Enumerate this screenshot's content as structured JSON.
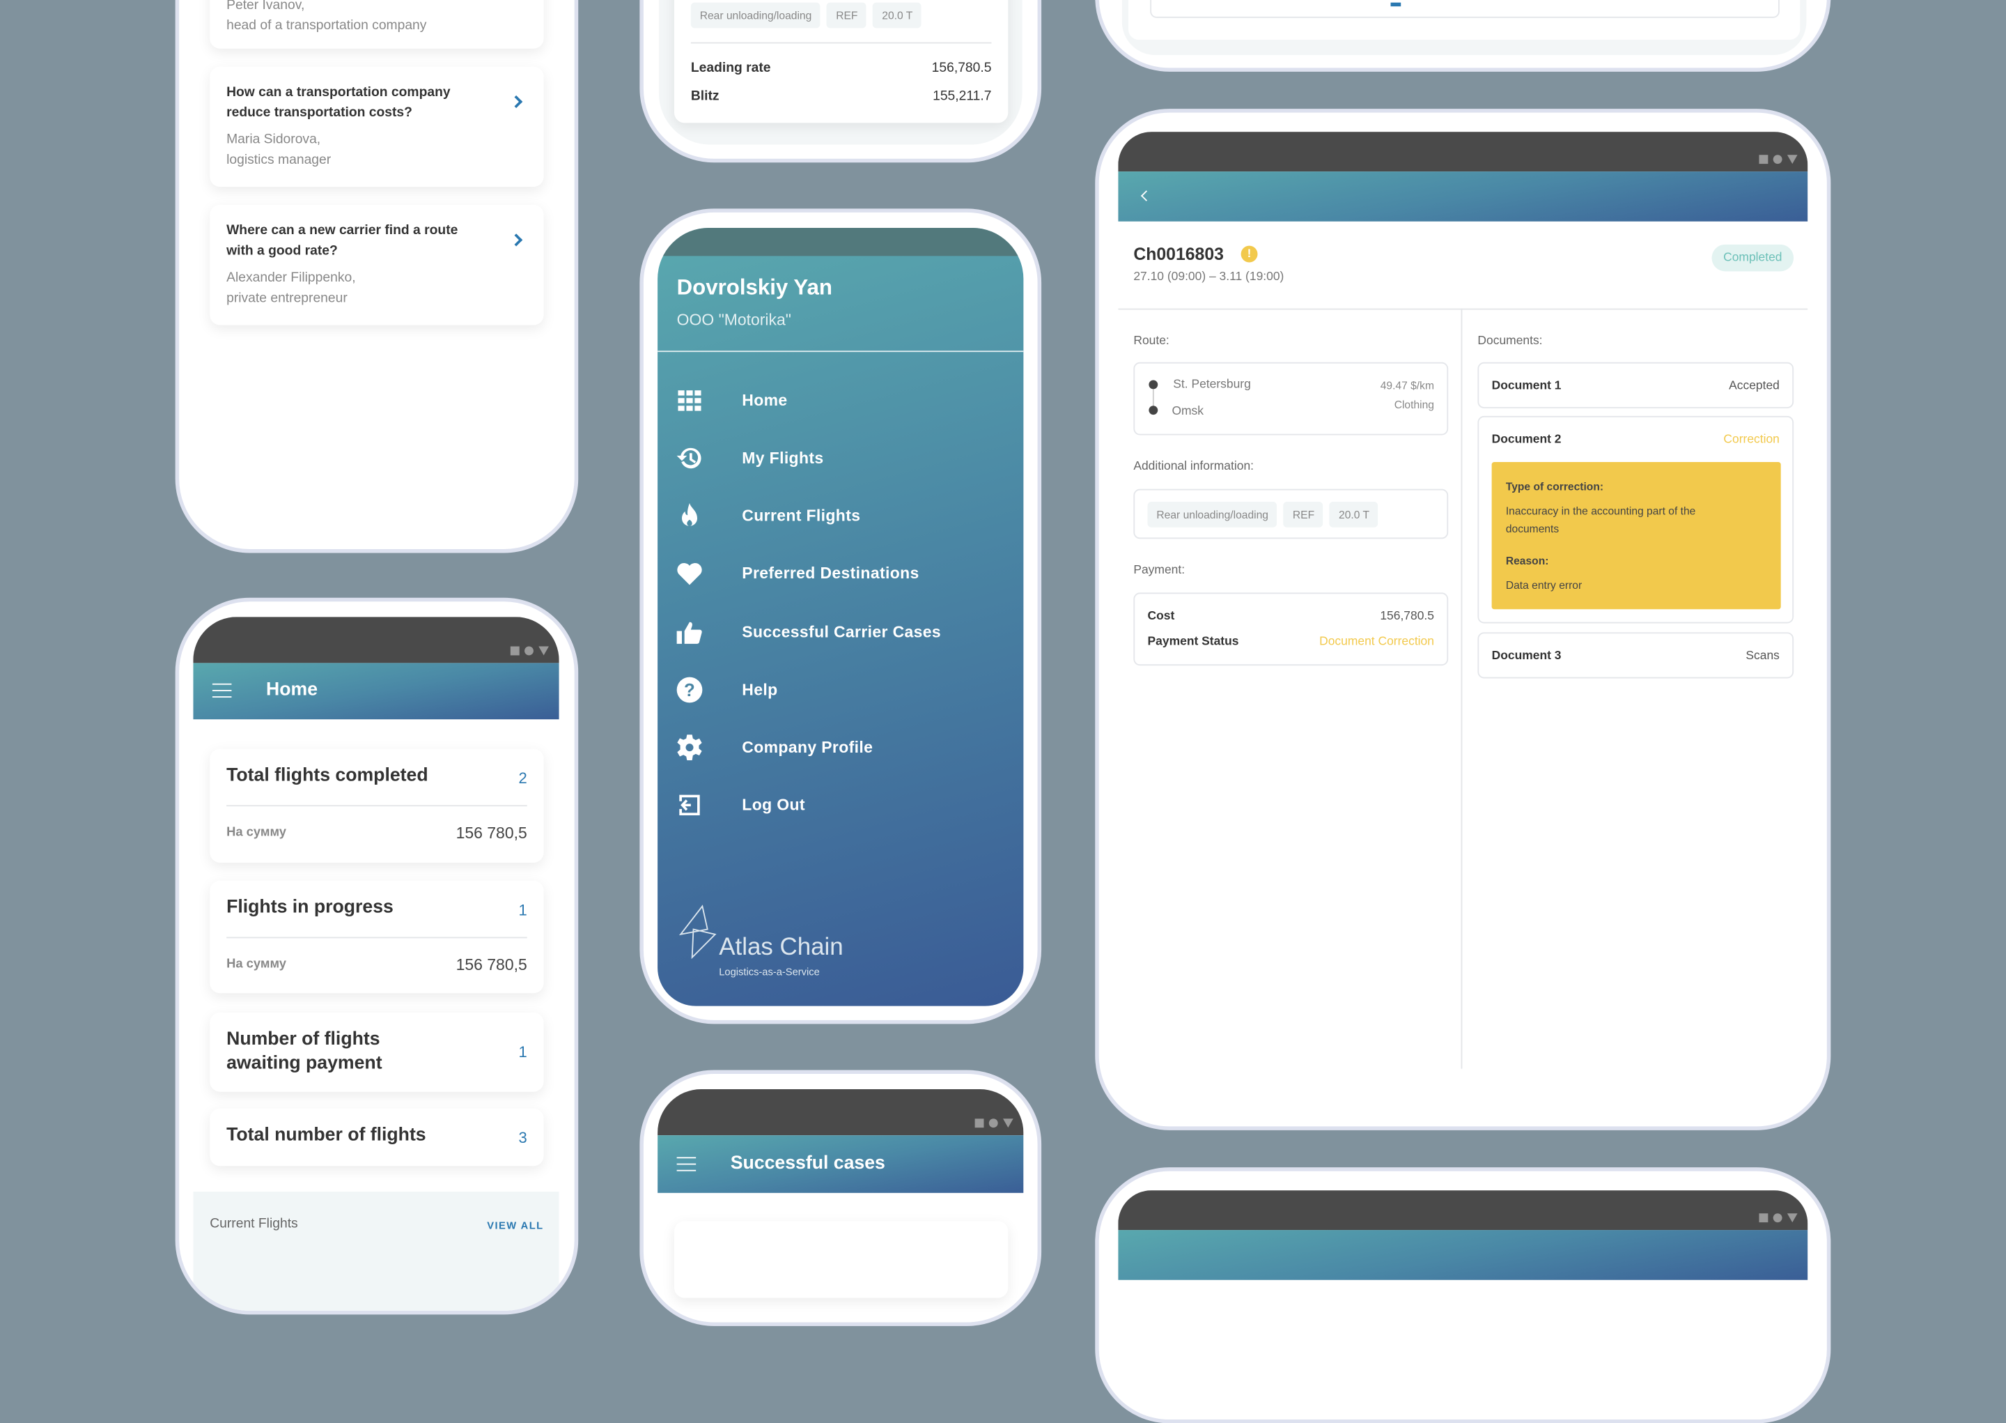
{
  "faq": {
    "items": [
      {
        "question": "",
        "author": "Peter Ivanov,",
        "role": "head of a transportation company"
      },
      {
        "question": "How can a transportation company reduce transportation costs?",
        "author": "Maria Sidorova,",
        "role": "logistics manager"
      },
      {
        "question": "Where can a new carrier find a route with a good rate?",
        "author": "Alexander Filippenko,",
        "role": "private entrepreneur"
      }
    ]
  },
  "rates": {
    "tags": [
      "Rear unloading/loading",
      "REF",
      "20.0 T"
    ],
    "rows": [
      {
        "label": "Leading rate",
        "value": "156,780.5"
      },
      {
        "label": "Blitz",
        "value": "155,211.7"
      }
    ]
  },
  "menu": {
    "user_name": "Dovrolskiy Yan",
    "company": "OOO \"Motorika\"",
    "items": [
      {
        "label": "Home",
        "icon": "grid-icon"
      },
      {
        "label": "My Flights",
        "icon": "history-icon"
      },
      {
        "label": "Current Flights",
        "icon": "fire-icon"
      },
      {
        "label": "Preferred Destinations",
        "icon": "heart-icon"
      },
      {
        "label": "Successful Carrier Cases",
        "icon": "thumbs-up-icon"
      },
      {
        "label": "Help",
        "icon": "help-icon"
      },
      {
        "label": "Company Profile",
        "icon": "gear-icon"
      },
      {
        "label": "Log Out",
        "icon": "logout-icon"
      }
    ],
    "logo_text": "Atlas Chain",
    "logo_tagline": "Logistics-as-a-Service"
  },
  "home": {
    "title": "Home",
    "stats": [
      {
        "title": "Total flights completed",
        "count": "2",
        "sub_label": "На сумму",
        "sub_value": "156 780,5"
      },
      {
        "title": "Flights in progress",
        "count": "1",
        "sub_label": "На сумму",
        "sub_value": "156 780,5"
      },
      {
        "title": "Number of flights awaiting payment",
        "count": "1"
      },
      {
        "title": "Total number of flights",
        "count": "3"
      }
    ],
    "section_title": "Current Flights",
    "view_all": "VIEW ALL"
  },
  "cases": {
    "title": "Successful cases"
  },
  "detail": {
    "id": "Ch0016803",
    "dates": "27.10 (09:00) – 3.11 (19:00)",
    "status": "Completed",
    "route_label": "Route:",
    "route": {
      "from": "St. Petersburg",
      "to": "Omsk",
      "rate": "49.47 $/km",
      "cargo": "Clothing"
    },
    "additional_label": "Additional information:",
    "tags": [
      "Rear unloading/loading",
      "REF",
      "20.0 T"
    ],
    "payment_label": "Payment:",
    "cost_label": "Cost",
    "cost_value": "156,780.5",
    "payment_status_label": "Payment Status",
    "payment_status_value": "Document Correction",
    "documents_label": "Documents:",
    "documents": [
      {
        "name": "Document 1",
        "status": "Accepted"
      },
      {
        "name": "Document 2",
        "status": "Correction"
      },
      {
        "name": "Document 3",
        "status": "Scans"
      }
    ],
    "correction": {
      "type_label": "Type of correction:",
      "type_value": "Inaccuracy in the accounting part of the documents",
      "reason_label": "Reason:",
      "reason_value": "Data entry error"
    }
  },
  "colors": {
    "background": "#80929d",
    "accent_blue": "#2a78b0",
    "warning_yellow": "#f2c94c",
    "completed_teal": "#6cc0b8"
  }
}
